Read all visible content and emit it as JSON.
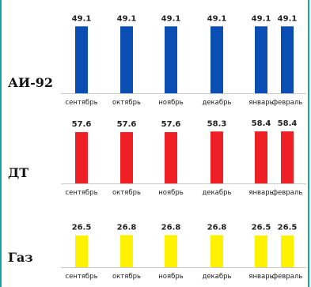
{
  "chart_data": {
    "type": "bar",
    "categories": [
      "сентябрь",
      "октябрь",
      "ноябрь",
      "декабрь",
      "январь",
      "февраль"
    ],
    "panels": [
      {
        "label": "АИ-92",
        "color": "#0a4db3",
        "values": [
          49.1,
          49.1,
          49.1,
          49.1,
          49.1,
          49.1
        ]
      },
      {
        "label": "ДТ",
        "color": "#ee2026",
        "values": [
          57.6,
          57.6,
          57.6,
          58.3,
          58.4,
          58.4
        ]
      },
      {
        "label": "Газ",
        "color": "#fff200",
        "values": [
          26.5,
          26.8,
          26.8,
          26.8,
          26.5,
          26.5
        ]
      }
    ]
  }
}
